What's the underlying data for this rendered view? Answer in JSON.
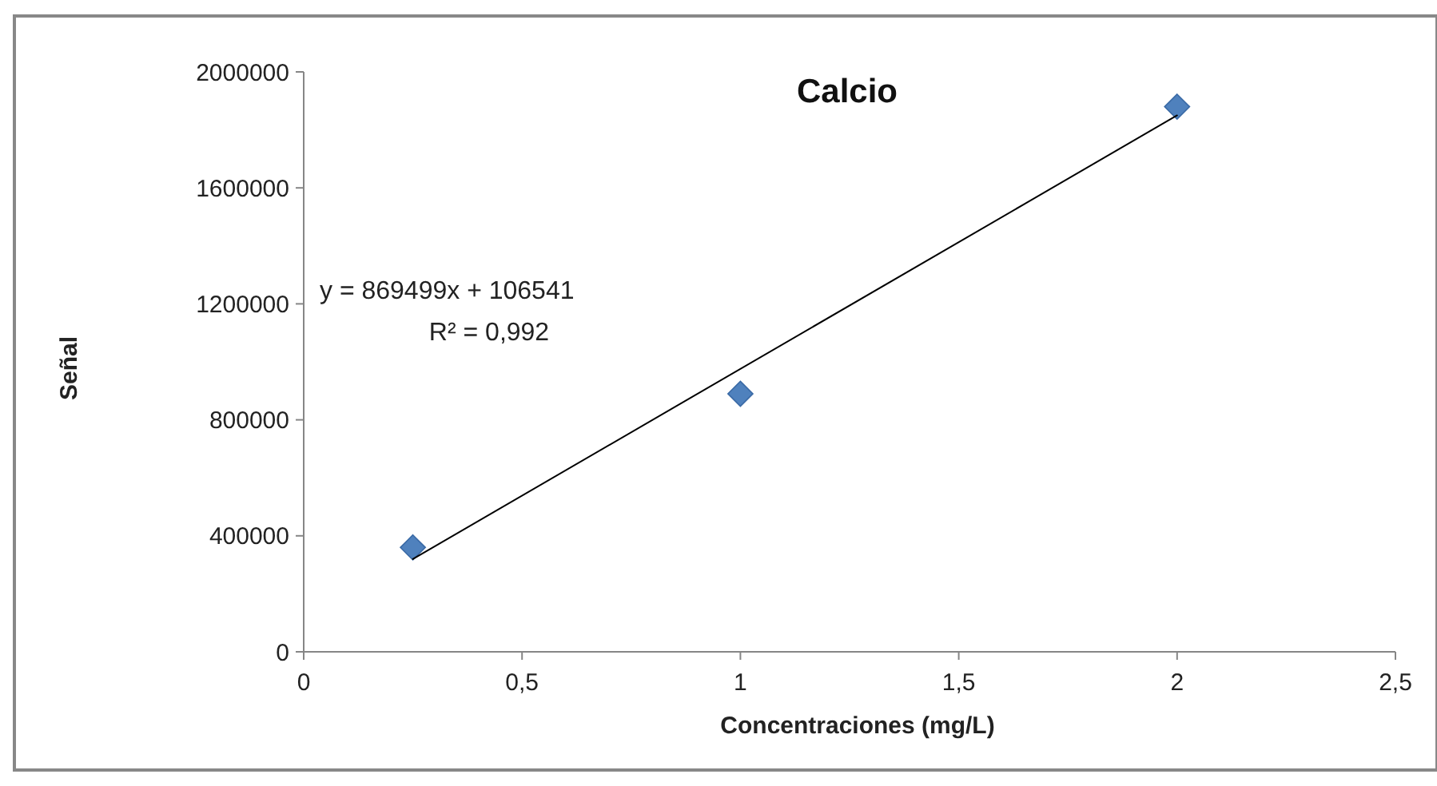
{
  "chart_data": {
    "type": "scatter",
    "title": "Calcio",
    "xlabel": "Concentraciones (mg/L)",
    "ylabel": "Señal",
    "series": [
      {
        "color": "#4f81bd",
        "x": [
          0.25,
          1,
          2
        ],
        "values": [
          360000,
          890000,
          1880000
        ],
        "marker": "diamond"
      },
      {
        "type": "line",
        "color": "#000000",
        "x": [
          0.25,
          2
        ],
        "values": [
          320000,
          1850000
        ],
        "marker": "none",
        "line_style": "solid"
      }
    ],
    "annotations": [
      "y = 869499x + 106541",
      "R² = 0,992"
    ],
    "xlim": [
      0,
      2.5
    ],
    "xticks": [
      0,
      {
        "value": 0.5,
        "label": "0,5"
      },
      1,
      {
        "value": 1.5,
        "label": "1,5"
      },
      2,
      {
        "value": 2.5,
        "label": "2,5"
      }
    ],
    "ylim": [
      0,
      2000000
    ],
    "yticks": [
      0,
      400000,
      800000,
      1200000,
      1600000,
      2000000
    ],
    "grid": false
  }
}
